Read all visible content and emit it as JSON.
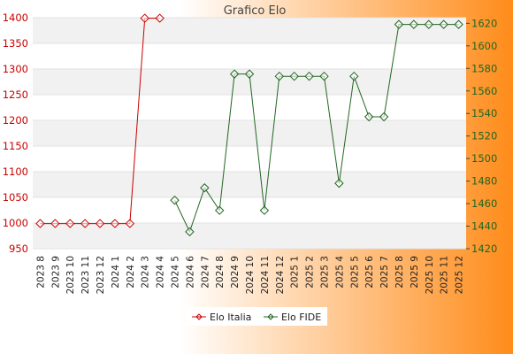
{
  "chart_data": {
    "type": "line",
    "title": "Grafico Elo",
    "categories": [
      "2023 8",
      "2023 9",
      "2023 10",
      "2023 11",
      "2023 12",
      "2024 1",
      "2024 2",
      "2024 3",
      "2024 4",
      "2024 5",
      "2024 6",
      "2024 7",
      "2024 8",
      "2024 9",
      "2024 10",
      "2024 11",
      "2024 12",
      "2025 1",
      "2025 2",
      "2025 3",
      "2025 4",
      "2025 5",
      "2025 6",
      "2025 7",
      "2025 8",
      "2025 9",
      "2025 10",
      "2025 11",
      "2025 12"
    ],
    "y_left": {
      "range": [
        950,
        1400
      ],
      "ticks": [
        "1400",
        "1350",
        "1300",
        "1250",
        "1200",
        "1150",
        "1100",
        "1050",
        "1000",
        "950"
      ]
    },
    "y_right": {
      "range": [
        1420,
        1625
      ],
      "ticks": [
        "1620",
        "1600",
        "1580",
        "1560",
        "1540",
        "1520",
        "1500",
        "1480",
        "1460",
        "1440",
        "1420"
      ]
    },
    "grid": "horizontal alternating bands",
    "legend_position": "bottom",
    "series": [
      {
        "name": "Elo Italia",
        "axis": "left",
        "color": "#cc0000",
        "marker": "diamond",
        "values": [
          999,
          999,
          999,
          999,
          999,
          999,
          999,
          1399,
          1399,
          null,
          null,
          null,
          null,
          null,
          null,
          null,
          null,
          null,
          null,
          null,
          null,
          null,
          null,
          null,
          null,
          null,
          null,
          null,
          null
        ]
      },
      {
        "name": "Elo FIDE",
        "axis": "right",
        "color": "#226622",
        "marker": "diamond",
        "values": [
          null,
          null,
          null,
          null,
          null,
          null,
          null,
          null,
          null,
          1463,
          1435,
          1474,
          1454,
          1575,
          1575,
          1454,
          1573,
          1573,
          1573,
          1573,
          1478,
          1573,
          1537,
          1537,
          1619,
          1619,
          1619,
          1619,
          1619
        ]
      }
    ]
  }
}
